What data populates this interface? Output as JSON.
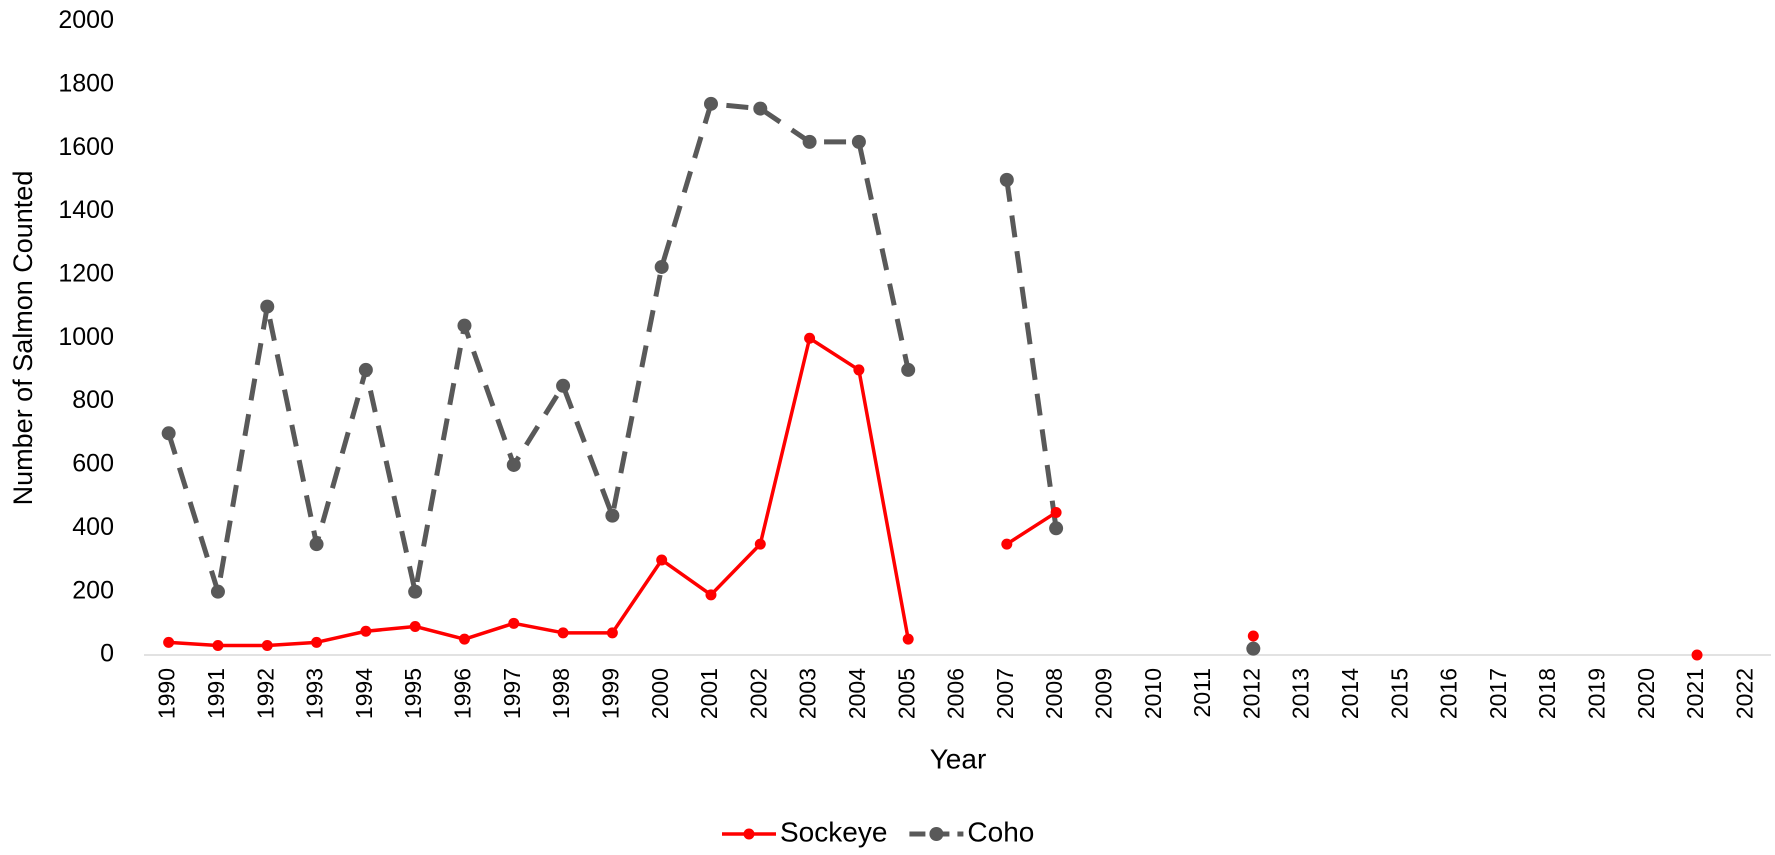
{
  "chart_data": {
    "type": "line",
    "x_label": "Year",
    "y_label": "Number of Salmon Counted",
    "categories": [
      "1990",
      "1991",
      "1992",
      "1993",
      "1994",
      "1995",
      "1996",
      "1997",
      "1998",
      "1999",
      "2000",
      "2001",
      "2002",
      "2003",
      "2004",
      "2005",
      "2006",
      "2007",
      "2008",
      "2009",
      "2010",
      "2011",
      "2012",
      "2013",
      "2014",
      "2015",
      "2016",
      "2017",
      "2018",
      "2019",
      "2020",
      "2021",
      "2022"
    ],
    "series": [
      {
        "name": "Sockeye",
        "color": "#ff0000",
        "dashed": false,
        "values": [
          40,
          30,
          30,
          40,
          75,
          90,
          50,
          100,
          70,
          70,
          300,
          190,
          350,
          1000,
          900,
          50,
          null,
          350,
          450,
          null,
          null,
          null,
          60,
          null,
          null,
          null,
          null,
          null,
          null,
          null,
          null,
          0,
          null
        ]
      },
      {
        "name": "Coho",
        "color": "#595959",
        "dashed": true,
        "values": [
          700,
          200,
          1100,
          350,
          900,
          200,
          1040,
          600,
          850,
          440,
          1225,
          1740,
          1725,
          1620,
          1620,
          900,
          null,
          1500,
          400,
          null,
          null,
          null,
          20,
          null,
          null,
          null,
          null,
          null,
          null,
          null,
          null,
          null,
          null
        ]
      }
    ],
    "ylim": [
      0,
      2000
    ],
    "yticks": [
      0,
      200,
      400,
      600,
      800,
      1000,
      1200,
      1400,
      1600,
      1800,
      2000
    ],
    "grid": false,
    "legend": "bottom"
  }
}
